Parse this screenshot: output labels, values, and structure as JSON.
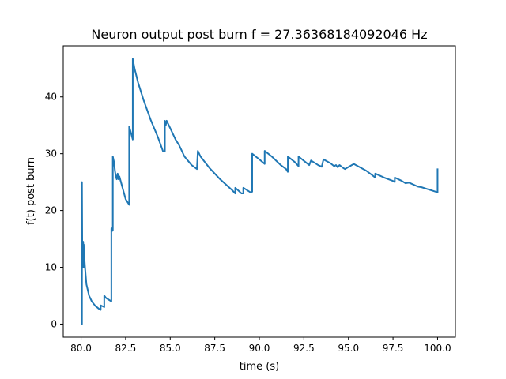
{
  "chart_data": {
    "type": "line",
    "title": "Neuron output post burn f = 27.36368184092046 Hz",
    "xlabel": "time (s)",
    "ylabel": "f(t) post burn",
    "xlim": [
      79.0,
      101.0
    ],
    "ylim": [
      -2.3,
      49.0
    ],
    "x_ticks": [
      80.0,
      82.5,
      85.0,
      87.5,
      90.0,
      92.5,
      95.0,
      97.5,
      100.0
    ],
    "x_tick_labels": [
      "80.0",
      "82.5",
      "85.0",
      "87.5",
      "90.0",
      "92.5",
      "95.0",
      "97.5",
      "100.0"
    ],
    "y_ticks": [
      0,
      10,
      20,
      30,
      40
    ],
    "y_tick_labels": [
      "0",
      "10",
      "20",
      "30",
      "40"
    ],
    "grid": false,
    "legend": "none",
    "series": [
      {
        "color": "#1f77b4",
        "x": [
          80.0,
          80.05,
          80.05,
          80.07,
          80.1,
          80.12,
          80.13,
          80.15,
          80.17,
          80.18,
          80.2,
          80.22,
          80.3,
          80.45,
          80.6,
          80.8,
          81.0,
          81.1,
          81.1,
          81.3,
          81.3,
          81.4,
          81.6,
          81.7,
          81.7,
          81.75,
          81.75,
          81.78,
          81.78,
          81.85,
          81.9,
          81.95,
          82.0,
          82.05,
          82.1,
          82.15,
          82.5,
          82.7,
          82.7,
          82.9,
          82.9,
          83.0,
          83.2,
          83.5,
          83.9,
          84.3,
          84.6,
          84.7,
          84.7,
          84.75,
          84.8,
          85.0,
          85.15,
          85.3,
          85.5,
          85.8,
          86.2,
          86.5,
          86.55,
          86.7,
          87.2,
          87.8,
          88.5,
          88.65,
          88.65,
          89.0,
          89.1,
          89.1,
          89.5,
          89.6,
          89.6,
          90.0,
          90.3,
          90.3,
          90.7,
          91.2,
          91.5,
          91.6,
          91.6,
          92.0,
          92.2,
          92.2,
          92.8,
          92.9,
          93.3,
          93.5,
          93.6,
          94.0,
          94.2,
          94.3,
          94.4,
          94.5,
          94.7,
          94.8,
          95.3,
          96.0,
          96.3,
          96.5,
          96.5,
          97.0,
          97.5,
          97.6,
          97.6,
          98.0,
          98.2,
          98.4,
          98.9,
          99.1,
          99.3,
          100.0,
          100.0,
          100.0
        ],
        "y": [
          0.0,
          0.0,
          25.0,
          11.5,
          10.0,
          14.5,
          10.5,
          14.0,
          10.0,
          13.0,
          11.0,
          10.0,
          7.0,
          5.0,
          4.0,
          3.2,
          2.7,
          2.5,
          3.3,
          3.0,
          5.0,
          4.6,
          4.2,
          4.0,
          16.8,
          16.4,
          16.9,
          16.5,
          29.5,
          28.5,
          27.0,
          26.0,
          25.5,
          26.5,
          25.5,
          26.0,
          22.0,
          21.0,
          34.8,
          32.5,
          46.7,
          45.0,
          42.5,
          39.5,
          36.0,
          33.0,
          30.4,
          30.4,
          35.8,
          35.0,
          35.8,
          34.5,
          33.5,
          32.5,
          31.5,
          29.5,
          28.0,
          27.3,
          30.5,
          29.5,
          27.5,
          25.5,
          23.5,
          23.0,
          24.0,
          23.0,
          23.0,
          24.0,
          23.2,
          23.3,
          30.0,
          29.0,
          28.2,
          30.5,
          29.5,
          28.0,
          27.3,
          26.8,
          29.5,
          28.5,
          27.8,
          29.5,
          28.0,
          28.8,
          28.0,
          27.7,
          29.0,
          28.3,
          27.8,
          28.0,
          27.6,
          28.0,
          27.5,
          27.3,
          28.2,
          27.0,
          26.3,
          25.8,
          26.5,
          25.8,
          25.2,
          25.0,
          25.8,
          25.2,
          24.8,
          24.9,
          24.2,
          24.1,
          23.9,
          23.2,
          27.2,
          27.4
        ]
      }
    ]
  }
}
